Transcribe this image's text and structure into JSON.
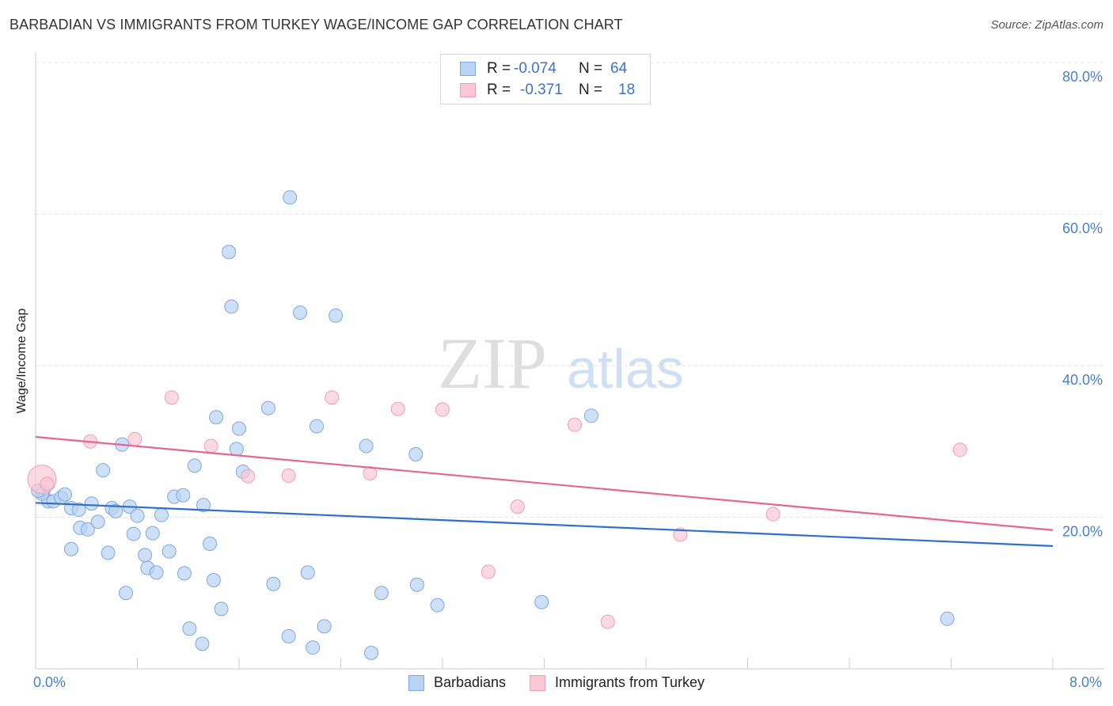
{
  "title": "BARBADIAN VS IMMIGRANTS FROM TURKEY WAGE/INCOME GAP CORRELATION CHART",
  "source": "Source: ZipAtlas.com",
  "watermark": {
    "zip": "ZIP",
    "atlas": "atlas"
  },
  "colors": {
    "blue_fill": "#b9d3f5",
    "blue_stroke": "#7ea8df",
    "blue_line": "#2f6fcc",
    "pink_fill": "#f9c7d5",
    "pink_stroke": "#ee9fb6",
    "pink_line": "#e56690",
    "accent_text": "#3d72d0"
  },
  "legend": {
    "rows": [
      {
        "r_label": "R =",
        "r_value": "-0.074",
        "n_label": "N =",
        "n_value": "64"
      },
      {
        "r_label": "R =",
        "r_value": "-0.371",
        "n_label": "N =",
        "n_value": "18"
      }
    ]
  },
  "chart_data": {
    "type": "scatter",
    "title": "BARBADIAN VS IMMIGRANTS FROM TURKEY WAGE/INCOME GAP CORRELATION CHART",
    "xlabel": "",
    "ylabel": "Wage/Income Gap",
    "xlim": [
      0,
      8
    ],
    "ylim": [
      0,
      80
    ],
    "x_tick_labels": [
      "0.0%",
      "8.0%"
    ],
    "y_ticks": [
      20,
      40,
      60,
      80
    ],
    "y_tick_labels": [
      "20.0%",
      "40.0%",
      "60.0%",
      "80.0%"
    ],
    "legend_position": "top-center",
    "series": [
      {
        "name": "Barbadians",
        "r": -0.074,
        "n": 64,
        "trend": {
          "x": [
            0,
            8
          ],
          "y": [
            21.9,
            16.2
          ]
        },
        "points": [
          {
            "x": 0.06,
            "y": 23.3
          },
          {
            "x": 0.1,
            "y": 22.1
          },
          {
            "x": 0.14,
            "y": 22.1
          },
          {
            "x": 0.2,
            "y": 22.6
          },
          {
            "x": 0.23,
            "y": 23.0
          },
          {
            "x": 0.28,
            "y": 21.2
          },
          {
            "x": 0.34,
            "y": 21.0
          },
          {
            "x": 0.35,
            "y": 18.6
          },
          {
            "x": 0.41,
            "y": 18.4
          },
          {
            "x": 0.44,
            "y": 21.8
          },
          {
            "x": 0.49,
            "y": 19.4
          },
          {
            "x": 0.53,
            "y": 26.2
          },
          {
            "x": 0.28,
            "y": 15.8
          },
          {
            "x": 0.57,
            "y": 15.3
          },
          {
            "x": 0.6,
            "y": 21.2
          },
          {
            "x": 0.63,
            "y": 20.8
          },
          {
            "x": 0.68,
            "y": 29.6
          },
          {
            "x": 0.71,
            "y": 10.0
          },
          {
            "x": 0.74,
            "y": 21.4
          },
          {
            "x": 0.77,
            "y": 17.8
          },
          {
            "x": 0.8,
            "y": 20.2
          },
          {
            "x": 0.86,
            "y": 15.0
          },
          {
            "x": 0.88,
            "y": 13.3
          },
          {
            "x": 0.92,
            "y": 17.9
          },
          {
            "x": 0.95,
            "y": 12.7
          },
          {
            "x": 0.99,
            "y": 20.3
          },
          {
            "x": 1.05,
            "y": 15.5
          },
          {
            "x": 1.09,
            "y": 22.7
          },
          {
            "x": 1.16,
            "y": 22.9
          },
          {
            "x": 1.17,
            "y": 12.6
          },
          {
            "x": 1.21,
            "y": 5.3
          },
          {
            "x": 1.25,
            "y": 26.8
          },
          {
            "x": 1.31,
            "y": 3.3
          },
          {
            "x": 1.32,
            "y": 21.6
          },
          {
            "x": 1.37,
            "y": 16.5
          },
          {
            "x": 1.4,
            "y": 11.7
          },
          {
            "x": 1.42,
            "y": 33.2
          },
          {
            "x": 1.46,
            "y": 7.9
          },
          {
            "x": 1.52,
            "y": 55.0
          },
          {
            "x": 1.54,
            "y": 47.8
          },
          {
            "x": 1.58,
            "y": 29.0
          },
          {
            "x": 1.6,
            "y": 31.7
          },
          {
            "x": 1.63,
            "y": 26.0
          },
          {
            "x": 1.83,
            "y": 34.4
          },
          {
            "x": 1.87,
            "y": 11.2
          },
          {
            "x": 1.99,
            "y": 4.3
          },
          {
            "x": 2.0,
            "y": 62.2
          },
          {
            "x": 2.08,
            "y": 47.0
          },
          {
            "x": 2.14,
            "y": 12.7
          },
          {
            "x": 2.18,
            "y": 2.8
          },
          {
            "x": 2.21,
            "y": 32.0
          },
          {
            "x": 2.27,
            "y": 5.6
          },
          {
            "x": 2.36,
            "y": 46.6
          },
          {
            "x": 2.6,
            "y": 29.4
          },
          {
            "x": 2.64,
            "y": 2.1
          },
          {
            "x": 2.72,
            "y": 10.0
          },
          {
            "x": 2.99,
            "y": 28.3
          },
          {
            "x": 3.0,
            "y": 11.1
          },
          {
            "x": 3.16,
            "y": 8.4
          },
          {
            "x": 3.98,
            "y": 8.8
          },
          {
            "x": 4.37,
            "y": 33.4
          },
          {
            "x": 7.17,
            "y": 6.6
          },
          {
            "x": 0.05,
            "y": 23.1
          },
          {
            "x": 0.02,
            "y": 23.5
          }
        ]
      },
      {
        "name": "Immigrants from Turkey",
        "r": -0.371,
        "n": 18,
        "trend": {
          "x": [
            0,
            8
          ],
          "y": [
            30.6,
            18.3
          ]
        },
        "points": [
          {
            "x": 0.05,
            "y": 25.0,
            "big": true
          },
          {
            "x": 0.09,
            "y": 24.4
          },
          {
            "x": 0.43,
            "y": 30.0
          },
          {
            "x": 0.78,
            "y": 30.3
          },
          {
            "x": 1.07,
            "y": 35.8
          },
          {
            "x": 1.38,
            "y": 29.4
          },
          {
            "x": 1.67,
            "y": 25.4
          },
          {
            "x": 1.99,
            "y": 25.5
          },
          {
            "x": 2.33,
            "y": 35.8
          },
          {
            "x": 2.63,
            "y": 25.8
          },
          {
            "x": 2.85,
            "y": 34.3
          },
          {
            "x": 3.2,
            "y": 34.2
          },
          {
            "x": 3.56,
            "y": 12.8
          },
          {
            "x": 3.79,
            "y": 21.4
          },
          {
            "x": 4.24,
            "y": 32.2
          },
          {
            "x": 4.5,
            "y": 6.2
          },
          {
            "x": 5.07,
            "y": 17.7
          },
          {
            "x": 5.8,
            "y": 20.4
          },
          {
            "x": 7.27,
            "y": 28.9
          }
        ]
      }
    ]
  }
}
